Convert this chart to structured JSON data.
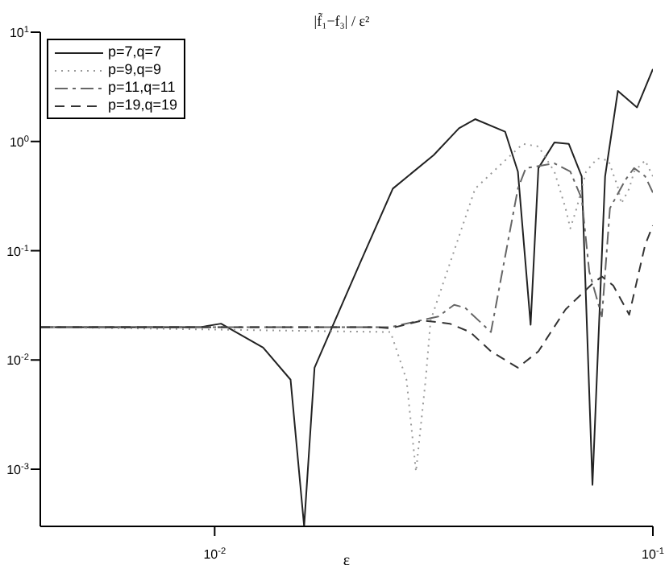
{
  "chart_data": {
    "type": "line",
    "title": "|f̃₁−f₃| / ε²",
    "xlabel": "ε",
    "log": "xy",
    "grid": false,
    "legend": "top left",
    "marker": "none",
    "xlim": [
      0.004,
      0.1
    ],
    "xticks": [
      {
        "value": 0.01,
        "label": "10$^{-2}$"
      },
      {
        "value": 0.1,
        "label": "10$^{-1}$"
      }
    ],
    "ylim": [
      0.0003,
      10
    ],
    "yticks": [
      {
        "value": 0.001,
        "label": "10$^{-3}$"
      },
      {
        "value": 0.01,
        "label": "10$^{-2}$"
      },
      {
        "value": 0.1,
        "label": "10$^{-1}$"
      },
      {
        "value": 1,
        "label": "10$^{0}$"
      },
      {
        "value": 10,
        "label": "10$^{1}$"
      }
    ],
    "series": [
      {
        "name": "p=7,q=7",
        "color": "#222222",
        "line_style": "solid",
        "x": [
          0.004,
          0.0093,
          0.01034,
          0.0129,
          0.0149,
          0.016,
          0.0169,
          0.01854,
          0.0214,
          0.0255,
          0.0316,
          0.0361,
          0.0393,
          0.046,
          0.0492,
          0.0526,
          0.0548,
          0.0596,
          0.0643,
          0.0688,
          0.0728,
          0.0778,
          0.0832,
          0.092,
          0.1
        ],
        "values": [
          0.02,
          0.02,
          0.0215,
          0.013,
          0.0066,
          0.0003,
          0.0085,
          0.02,
          0.075,
          0.37,
          0.75,
          1.32,
          1.6,
          1.23,
          0.53,
          0.021,
          0.57,
          0.98,
          0.95,
          0.48,
          0.00072,
          0.48,
          2.9,
          2.05,
          4.6
        ]
      },
      {
        "name": "p=9,q=9",
        "color": "#999999",
        "line_style": "dotted",
        "x": [
          0.004,
          0.0252,
          0.0274,
          0.0288,
          0.0303,
          0.0311,
          0.0393,
          0.046,
          0.0505,
          0.0548,
          0.0596,
          0.0632,
          0.0648,
          0.067,
          0.0704,
          0.0747,
          0.0792,
          0.0832,
          0.0847,
          0.0883,
          0.0906,
          0.096,
          0.1
        ],
        "values": [
          0.02,
          0.018,
          0.0066,
          0.00095,
          0.0066,
          0.023,
          0.37,
          0.67,
          0.95,
          0.9,
          0.53,
          0.245,
          0.16,
          0.245,
          0.53,
          0.7,
          0.67,
          0.38,
          0.27,
          0.37,
          0.53,
          0.67,
          0.48
        ]
      },
      {
        "name": "p=11,q=11",
        "color": "#666666",
        "line_style": "dashdot",
        "x": [
          0.004,
          0.0252,
          0.0324,
          0.0352,
          0.0373,
          0.0427,
          0.0492,
          0.0513,
          0.0596,
          0.0648,
          0.0688,
          0.0716,
          0.0765,
          0.0798,
          0.0867,
          0.0906,
          0.096,
          0.1
        ],
        "values": [
          0.02,
          0.02,
          0.025,
          0.032,
          0.03,
          0.018,
          0.37,
          0.57,
          0.63,
          0.53,
          0.3,
          0.064,
          0.025,
          0.245,
          0.45,
          0.57,
          0.48,
          0.34
        ]
      },
      {
        "name": "p=19,q=19",
        "color": "#333333",
        "line_style": "dashed",
        "x": [
          0.004,
          0.0232,
          0.0252,
          0.0298,
          0.0344,
          0.0383,
          0.0427,
          0.0492,
          0.0548,
          0.0632,
          0.0728,
          0.0765,
          0.0812,
          0.0883,
          0.096,
          0.1
        ],
        "values": [
          0.02,
          0.02,
          0.0195,
          0.023,
          0.0215,
          0.018,
          0.012,
          0.0085,
          0.012,
          0.029,
          0.05,
          0.058,
          0.048,
          0.026,
          0.113,
          0.17
        ]
      }
    ]
  }
}
